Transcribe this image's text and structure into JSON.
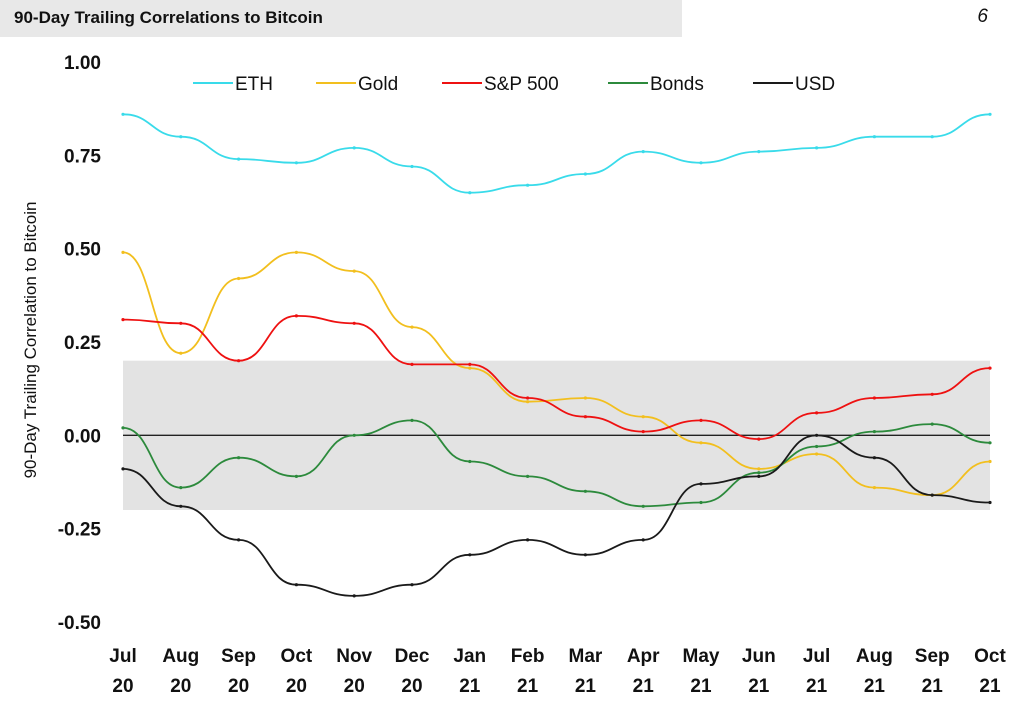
{
  "header": {
    "title": "90-Day Trailing Correlations to Bitcoin",
    "page_number": "6"
  },
  "colors": {
    "ETH": "#39dbea",
    "Gold": "#f2bf1e",
    "S&P 500": "#ee1111",
    "Bonds": "#2c8a3c",
    "USD": "#1a1a1a",
    "band": "#e3e3e3"
  },
  "chart_data": {
    "type": "line",
    "title": "90-Day Trailing Correlations to Bitcoin",
    "xlabel": "",
    "ylabel": "90-Day Trailing Correlation to Bitcoin",
    "ylim": [
      -0.5,
      1.0
    ],
    "yticks": [
      "1.00",
      "0.75",
      "0.50",
      "0.25",
      "0.00",
      "-0.25",
      "-0.50"
    ],
    "ytick_values": [
      1.0,
      0.75,
      0.5,
      0.25,
      0.0,
      -0.25,
      -0.5
    ],
    "xticks": [
      [
        "Jul",
        "20"
      ],
      [
        "Aug",
        "20"
      ],
      [
        "Sep",
        "20"
      ],
      [
        "Oct",
        "20"
      ],
      [
        "Nov",
        "20"
      ],
      [
        "Dec",
        "20"
      ],
      [
        "Jan",
        "21"
      ],
      [
        "Feb",
        "21"
      ],
      [
        "Mar",
        "21"
      ],
      [
        "Apr",
        "21"
      ],
      [
        "May",
        "21"
      ],
      [
        "Jun",
        "21"
      ],
      [
        "Jul",
        "21"
      ],
      [
        "Aug",
        "21"
      ],
      [
        "Sep",
        "21"
      ],
      [
        "Oct",
        "21"
      ]
    ],
    "legend_position": "top",
    "shaded_band": [
      -0.2,
      0.2
    ],
    "zero_line": 0.0,
    "x": [
      "Jul 20",
      "Aug 20",
      "Sep 20",
      "Oct 20",
      "Nov 20",
      "Dec 20",
      "Jan 21",
      "Feb 21",
      "Mar 21",
      "Apr 21",
      "May 21",
      "Jun 21",
      "Jul 21",
      "Aug 21",
      "Sep 21",
      "Oct 21"
    ],
    "series": [
      {
        "name": "ETH",
        "values": [
          0.86,
          0.8,
          0.74,
          0.73,
          0.77,
          0.72,
          0.65,
          0.67,
          0.7,
          0.76,
          0.73,
          0.76,
          0.77,
          0.8,
          0.8,
          0.86
        ]
      },
      {
        "name": "Gold",
        "values": [
          0.49,
          0.22,
          0.42,
          0.49,
          0.44,
          0.29,
          0.18,
          0.09,
          0.1,
          0.05,
          -0.02,
          -0.09,
          -0.05,
          -0.14,
          -0.16,
          -0.07
        ]
      },
      {
        "name": "S&P 500",
        "values": [
          0.31,
          0.3,
          0.2,
          0.32,
          0.3,
          0.19,
          0.19,
          0.1,
          0.05,
          0.01,
          0.04,
          -0.01,
          0.06,
          0.1,
          0.11,
          0.18
        ]
      },
      {
        "name": "Bonds",
        "values": [
          0.02,
          -0.14,
          -0.06,
          -0.11,
          0.0,
          0.04,
          -0.07,
          -0.11,
          -0.15,
          -0.19,
          -0.18,
          -0.1,
          -0.03,
          0.01,
          0.03,
          -0.02
        ]
      },
      {
        "name": "USD",
        "values": [
          -0.09,
          -0.19,
          -0.28,
          -0.4,
          -0.43,
          -0.4,
          -0.32,
          -0.28,
          -0.32,
          -0.28,
          -0.13,
          -0.11,
          0.0,
          -0.06,
          -0.16,
          -0.18
        ]
      }
    ]
  }
}
